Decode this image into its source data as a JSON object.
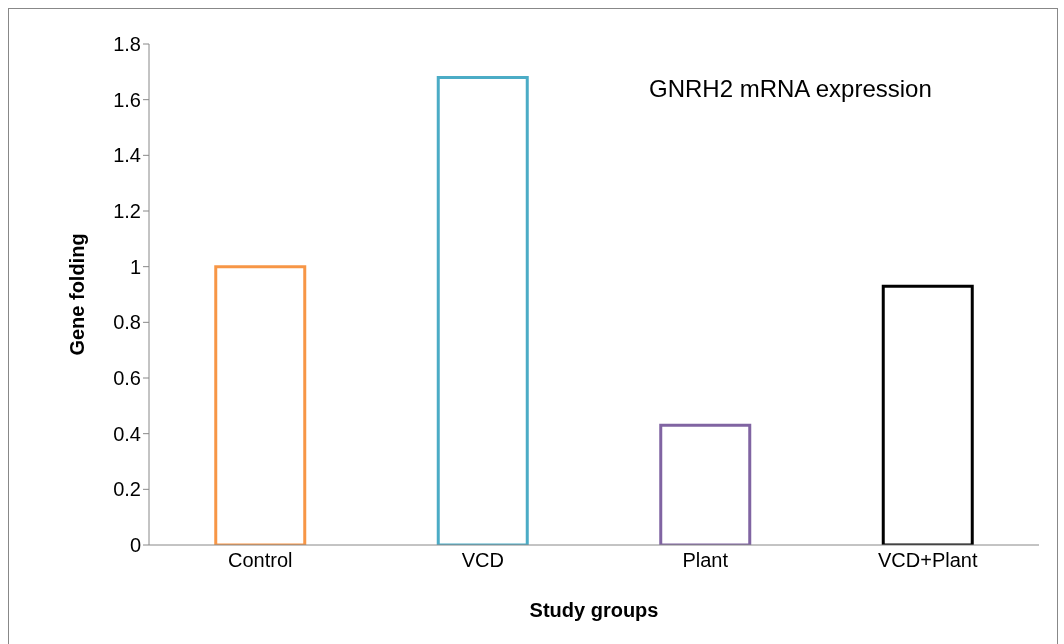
{
  "chart_data": {
    "type": "bar",
    "title": "GNRH2 mRNA expression",
    "xlabel": "Study groups",
    "ylabel": "Gene folding",
    "categories": [
      "Control",
      "VCD",
      "Plant",
      "VCD+Plant"
    ],
    "values": [
      1.0,
      1.68,
      0.43,
      0.93
    ],
    "colors": [
      "#f79646",
      "#4bacc6",
      "#8064a2",
      "#000000"
    ],
    "ylim": [
      0,
      1.8
    ],
    "yticks": [
      0,
      0.2,
      0.4,
      0.6,
      0.8,
      1,
      1.2,
      1.4,
      1.6,
      1.8
    ],
    "grid": false
  }
}
